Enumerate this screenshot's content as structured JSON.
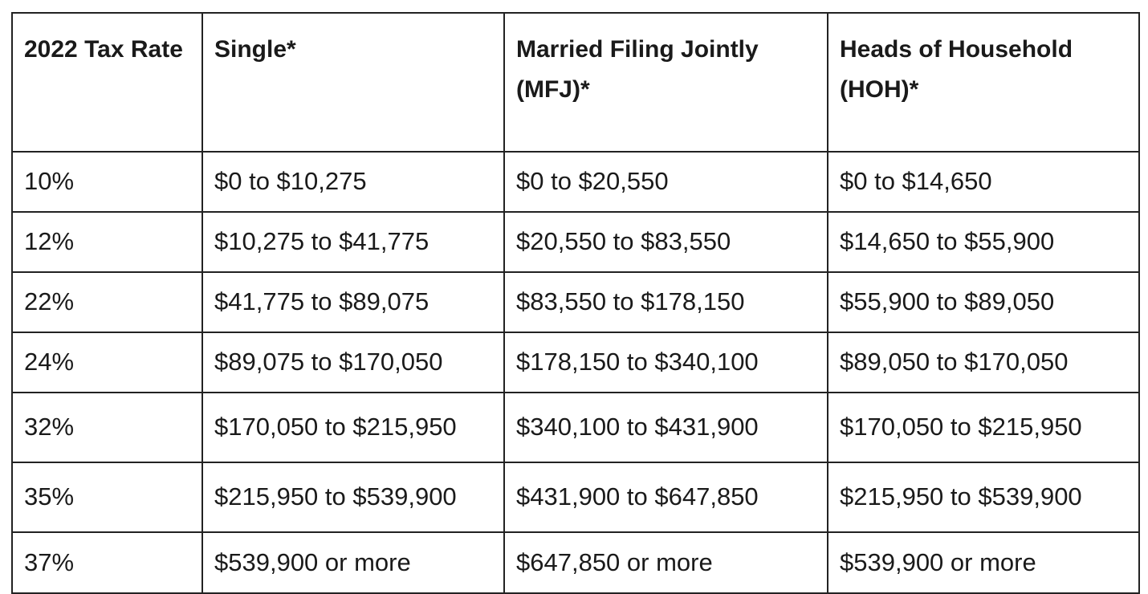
{
  "table": {
    "headers": [
      "2022 Tax Rate",
      "Single*",
      "Married Filing Jointly (MFJ)*",
      "Heads of Household (HOH)*"
    ],
    "rows": [
      [
        "10%",
        "$0 to $10,275",
        "$0 to $20,550",
        "$0 to $14,650"
      ],
      [
        "12%",
        "$10,275 to $41,775",
        "$20,550 to $83,550",
        "$14,650 to $55,900"
      ],
      [
        "22%",
        "$41,775 to $89,075",
        "$83,550 to $178,150",
        "$55,900 to $89,050"
      ],
      [
        "24%",
        "$89,075 to $170,050",
        "$178,150 to $340,100",
        "$89,050 to $170,050"
      ],
      [
        "32%",
        "$170,050 to $215,950",
        "$340,100 to $431,900",
        "$170,050 to $215,950"
      ],
      [
        "35%",
        "$215,950 to $539,900",
        "$431,900 to $647,850",
        "$215,950 to $539,900"
      ],
      [
        "37%",
        "$539,900 or more",
        "$647,850 or more",
        "$539,900 or more"
      ]
    ]
  }
}
